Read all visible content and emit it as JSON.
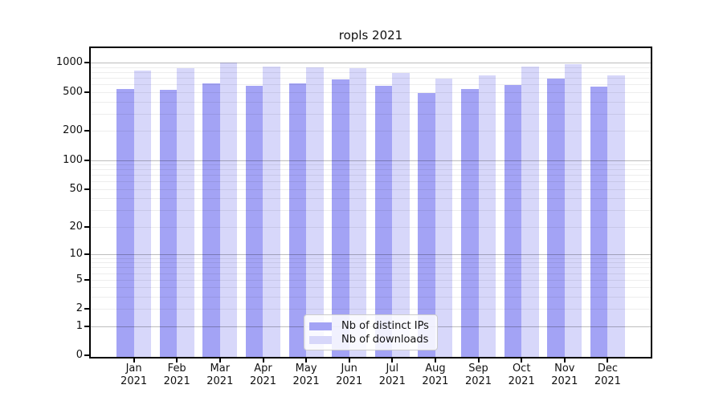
{
  "title": "ropls 2021",
  "legend": {
    "items": [
      {
        "label": "Nb of distinct IPs",
        "color": "#a3a3f5"
      },
      {
        "label": "Nb of downloads",
        "color": "#d7d7fa"
      }
    ]
  },
  "chart_data": {
    "type": "bar",
    "title": "ropls 2021",
    "categories": [
      "Jan 2021",
      "Feb 2021",
      "Mar 2021",
      "Apr 2021",
      "May 2021",
      "Jun 2021",
      "Jul 2021",
      "Aug 2021",
      "Sep 2021",
      "Oct 2021",
      "Nov 2021",
      "Dec 2021"
    ],
    "month_labels": [
      "Jan",
      "Feb",
      "Mar",
      "Apr",
      "May",
      "Jun",
      "Jul",
      "Aug",
      "Sep",
      "Oct",
      "Nov",
      "Dec"
    ],
    "year_label": "2021",
    "series": [
      {
        "name": "Nb of distinct IPs",
        "color": "#a3a3f5",
        "values": [
          540,
          530,
          617,
          580,
          620,
          675,
          580,
          485,
          540,
          595,
          685,
          565
        ]
      },
      {
        "name": "Nb of downloads",
        "color": "#d7d7fa",
        "values": [
          825,
          885,
          1005,
          920,
          898,
          880,
          790,
          685,
          740,
          920,
          965,
          740
        ]
      }
    ],
    "yscale": "log10(value+1)",
    "y_tick_values": [
      1000,
      500,
      200,
      100,
      50,
      20,
      10,
      5,
      2,
      1,
      0
    ],
    "y_tick_labels": [
      "1000",
      "500",
      "200",
      "100",
      "50",
      "20",
      "10",
      "5",
      "2",
      "1",
      "0"
    ],
    "ylim": [
      0,
      1420
    ],
    "grid": true,
    "grid_major_values": [
      1,
      10,
      100,
      1000
    ],
    "grid_minor_multipliers": [
      2,
      3,
      4,
      5,
      6,
      7,
      8,
      9
    ],
    "legend_position": "lower center"
  }
}
